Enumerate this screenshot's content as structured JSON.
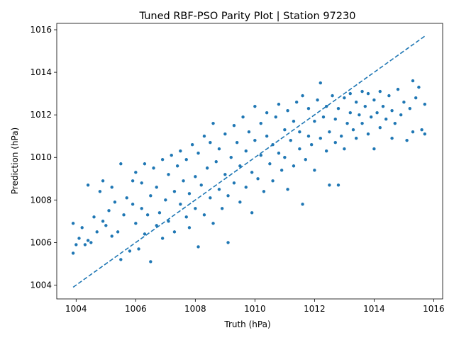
{
  "chart_data": {
    "type": "scatter",
    "title": "Tuned RBF-PSO Parity Plot | Station 97230",
    "xlabel": "Truth (hPa)",
    "ylabel": "Prediction (hPa)",
    "xlim": [
      1003.35,
      1016.3
    ],
    "ylim": [
      1003.35,
      1016.3
    ],
    "xticks": [
      1004,
      1006,
      1008,
      1010,
      1012,
      1014,
      1016
    ],
    "yticks": [
      1004,
      1006,
      1008,
      1010,
      1012,
      1014,
      1016
    ],
    "grid": false,
    "color": "#1f77b4",
    "reference_line": {
      "style": "dashed",
      "x": [
        1003.9,
        1015.7
      ],
      "y": [
        1003.9,
        1015.7
      ]
    },
    "series": [
      {
        "points": [
          [
            1003.9,
            1005.5
          ],
          [
            1003.9,
            1006.9
          ],
          [
            1004.0,
            1005.9
          ],
          [
            1004.1,
            1006.2
          ],
          [
            1004.2,
            1006.7
          ],
          [
            1004.3,
            1005.9
          ],
          [
            1004.4,
            1006.1
          ],
          [
            1004.4,
            1008.7
          ],
          [
            1004.5,
            1006.0
          ],
          [
            1004.6,
            1007.2
          ],
          [
            1004.7,
            1006.5
          ],
          [
            1004.8,
            1008.4
          ],
          [
            1004.9,
            1007.0
          ],
          [
            1004.9,
            1008.9
          ],
          [
            1005.0,
            1006.8
          ],
          [
            1005.1,
            1007.5
          ],
          [
            1005.2,
            1006.3
          ],
          [
            1005.2,
            1008.6
          ],
          [
            1005.3,
            1007.9
          ],
          [
            1005.4,
            1006.5
          ],
          [
            1005.5,
            1009.7
          ],
          [
            1005.5,
            1005.2
          ],
          [
            1005.6,
            1007.3
          ],
          [
            1005.7,
            1008.1
          ],
          [
            1005.8,
            1005.6
          ],
          [
            1005.9,
            1007.8
          ],
          [
            1005.9,
            1008.9
          ],
          [
            1006.0,
            1006.9
          ],
          [
            1006.0,
            1009.3
          ],
          [
            1006.1,
            1005.7
          ],
          [
            1006.2,
            1007.6
          ],
          [
            1006.2,
            1008.8
          ],
          [
            1006.3,
            1006.4
          ],
          [
            1006.3,
            1009.7
          ],
          [
            1006.4,
            1007.3
          ],
          [
            1006.5,
            1008.2
          ],
          [
            1006.5,
            1005.1
          ],
          [
            1006.6,
            1009.5
          ],
          [
            1006.7,
            1006.8
          ],
          [
            1006.7,
            1008.6
          ],
          [
            1006.8,
            1007.4
          ],
          [
            1006.9,
            1009.9
          ],
          [
            1006.9,
            1006.2
          ],
          [
            1007.0,
            1008.0
          ],
          [
            1007.1,
            1009.2
          ],
          [
            1007.1,
            1007.0
          ],
          [
            1007.2,
            1010.1
          ],
          [
            1007.3,
            1008.4
          ],
          [
            1007.3,
            1006.5
          ],
          [
            1007.4,
            1009.6
          ],
          [
            1007.5,
            1007.8
          ],
          [
            1007.5,
            1010.3
          ],
          [
            1007.6,
            1008.9
          ],
          [
            1007.7,
            1007.2
          ],
          [
            1007.7,
            1009.9
          ],
          [
            1007.8,
            1008.3
          ],
          [
            1007.8,
            1006.7
          ],
          [
            1007.9,
            1010.6
          ],
          [
            1008.0,
            1009.1
          ],
          [
            1008.0,
            1007.6
          ],
          [
            1008.1,
            1010.2
          ],
          [
            1008.1,
            1005.8
          ],
          [
            1008.2,
            1008.7
          ],
          [
            1008.3,
            1011.0
          ],
          [
            1008.3,
            1007.3
          ],
          [
            1008.4,
            1009.5
          ],
          [
            1008.5,
            1008.1
          ],
          [
            1008.5,
            1010.7
          ],
          [
            1008.6,
            1011.6
          ],
          [
            1008.6,
            1006.9
          ],
          [
            1008.7,
            1009.8
          ],
          [
            1008.8,
            1008.5
          ],
          [
            1008.8,
            1010.4
          ],
          [
            1008.9,
            1007.6
          ],
          [
            1009.0,
            1011.1
          ],
          [
            1009.0,
            1009.2
          ],
          [
            1009.1,
            1008.2
          ],
          [
            1009.1,
            1006.0
          ],
          [
            1009.2,
            1010.0
          ],
          [
            1009.3,
            1011.5
          ],
          [
            1009.3,
            1008.8
          ],
          [
            1009.4,
            1010.7
          ],
          [
            1009.5,
            1007.9
          ],
          [
            1009.5,
            1009.6
          ],
          [
            1009.6,
            1011.9
          ],
          [
            1009.7,
            1010.3
          ],
          [
            1009.7,
            1008.6
          ],
          [
            1009.8,
            1011.2
          ],
          [
            1009.9,
            1009.3
          ],
          [
            1009.9,
            1007.4
          ],
          [
            1010.0,
            1010.8
          ],
          [
            1010.0,
            1012.4
          ],
          [
            1010.1,
            1009.0
          ],
          [
            1010.2,
            1011.6
          ],
          [
            1010.2,
            1010.1
          ],
          [
            1010.3,
            1008.4
          ],
          [
            1010.4,
            1011.0
          ],
          [
            1010.4,
            1012.1
          ],
          [
            1010.5,
            1009.7
          ],
          [
            1010.6,
            1010.6
          ],
          [
            1010.6,
            1008.9
          ],
          [
            1010.7,
            1011.9
          ],
          [
            1010.8,
            1010.2
          ],
          [
            1010.8,
            1012.5
          ],
          [
            1010.9,
            1009.4
          ],
          [
            1011.0,
            1011.3
          ],
          [
            1011.0,
            1010.0
          ],
          [
            1011.1,
            1012.2
          ],
          [
            1011.1,
            1008.5
          ],
          [
            1011.2,
            1010.8
          ],
          [
            1011.3,
            1011.7
          ],
          [
            1011.3,
            1009.6
          ],
          [
            1011.4,
            1012.6
          ],
          [
            1011.5,
            1010.4
          ],
          [
            1011.5,
            1011.2
          ],
          [
            1011.6,
            1007.8
          ],
          [
            1011.6,
            1012.9
          ],
          [
            1011.7,
            1009.9
          ],
          [
            1011.8,
            1011.0
          ],
          [
            1011.8,
            1012.3
          ],
          [
            1011.9,
            1010.6
          ],
          [
            1012.0,
            1011.7
          ],
          [
            1012.0,
            1009.4
          ],
          [
            1012.1,
            1012.7
          ],
          [
            1012.2,
            1013.5
          ],
          [
            1012.2,
            1010.9
          ],
          [
            1012.3,
            1011.9
          ],
          [
            1012.4,
            1010.3
          ],
          [
            1012.4,
            1012.4
          ],
          [
            1012.5,
            1008.7
          ],
          [
            1012.5,
            1011.2
          ],
          [
            1012.6,
            1012.9
          ],
          [
            1012.7,
            1010.7
          ],
          [
            1012.7,
            1011.8
          ],
          [
            1012.8,
            1008.7
          ],
          [
            1012.8,
            1012.3
          ],
          [
            1012.9,
            1011.0
          ],
          [
            1013.0,
            1012.8
          ],
          [
            1013.0,
            1010.4
          ],
          [
            1013.1,
            1011.6
          ],
          [
            1013.2,
            1013.0
          ],
          [
            1013.2,
            1012.1
          ],
          [
            1013.3,
            1011.3
          ],
          [
            1013.4,
            1012.6
          ],
          [
            1013.4,
            1010.9
          ],
          [
            1013.5,
            1012.0
          ],
          [
            1013.6,
            1013.1
          ],
          [
            1013.6,
            1011.6
          ],
          [
            1013.7,
            1012.4
          ],
          [
            1013.8,
            1011.1
          ],
          [
            1013.8,
            1013.0
          ],
          [
            1013.9,
            1011.9
          ],
          [
            1014.0,
            1012.7
          ],
          [
            1014.0,
            1010.4
          ],
          [
            1014.1,
            1012.1
          ],
          [
            1014.2,
            1011.4
          ],
          [
            1014.2,
            1013.1
          ],
          [
            1014.3,
            1012.4
          ],
          [
            1014.4,
            1011.8
          ],
          [
            1014.5,
            1012.9
          ],
          [
            1014.6,
            1010.9
          ],
          [
            1014.6,
            1012.2
          ],
          [
            1014.7,
            1011.6
          ],
          [
            1014.8,
            1013.2
          ],
          [
            1014.9,
            1012.0
          ],
          [
            1015.0,
            1012.6
          ],
          [
            1015.1,
            1010.8
          ],
          [
            1015.2,
            1012.3
          ],
          [
            1015.3,
            1013.6
          ],
          [
            1015.3,
            1011.2
          ],
          [
            1015.4,
            1012.8
          ],
          [
            1015.5,
            1013.3
          ],
          [
            1015.6,
            1011.3
          ],
          [
            1015.7,
            1012.5
          ],
          [
            1015.7,
            1011.1
          ]
        ]
      }
    ]
  }
}
